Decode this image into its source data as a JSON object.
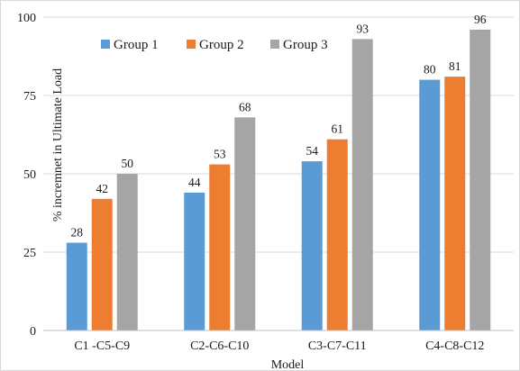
{
  "chart_data": {
    "type": "bar",
    "title": "",
    "xlabel": "Model",
    "ylabel": "% incremnet in Ultimate  Load",
    "categories": [
      "C1 -C5-C9",
      "C2-C6-C10",
      "C3-C7-C11",
      "C4-C8-C12"
    ],
    "series": [
      {
        "name": "Group 1",
        "color": "#5b9bd5",
        "values": [
          28,
          44,
          54,
          80
        ]
      },
      {
        "name": "Group 2",
        "color": "#ed7d31",
        "values": [
          42,
          53,
          61,
          81
        ]
      },
      {
        "name": "Group 3",
        "color": "#a5a5a5",
        "values": [
          50,
          68,
          93,
          96
        ]
      }
    ],
    "ylim": [
      0,
      100
    ],
    "yticks": [
      0,
      25,
      50,
      75,
      100
    ],
    "grid": true,
    "legend_position": "top-left"
  }
}
